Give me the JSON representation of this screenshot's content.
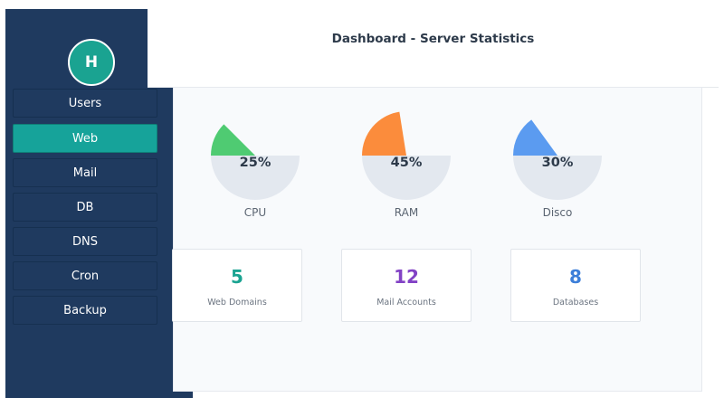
{
  "header": {
    "title": "Dashboard - Server Statistics"
  },
  "sidebar": {
    "avatar_letter": "H",
    "active_index": 1,
    "items": [
      {
        "label": "Users"
      },
      {
        "label": "Web"
      },
      {
        "label": "Mail"
      },
      {
        "label": "DB"
      },
      {
        "label": "DNS"
      },
      {
        "label": "Cron"
      },
      {
        "label": "Backup"
      }
    ]
  },
  "gauges": [
    {
      "label": "CPU",
      "value": "25%",
      "fraction": 0.25,
      "color": "#4fcb72"
    },
    {
      "label": "RAM",
      "value": "45%",
      "fraction": 0.45,
      "color": "#fb8c3c"
    },
    {
      "label": "Disco",
      "value": "30%",
      "fraction": 0.3,
      "color": "#5b9bf0"
    }
  ],
  "cards": [
    {
      "value": "5",
      "label": "Web Domains",
      "color": "#1aa391"
    },
    {
      "value": "12",
      "label": "Mail Accounts",
      "color": "#8242c5"
    },
    {
      "value": "8",
      "label": "Databases",
      "color": "#3d7fd9"
    }
  ],
  "colors": {
    "sidebar_bg": "#1f3a5f",
    "active_item": "#16a39a",
    "gauge_track": "#e3e8ef"
  }
}
